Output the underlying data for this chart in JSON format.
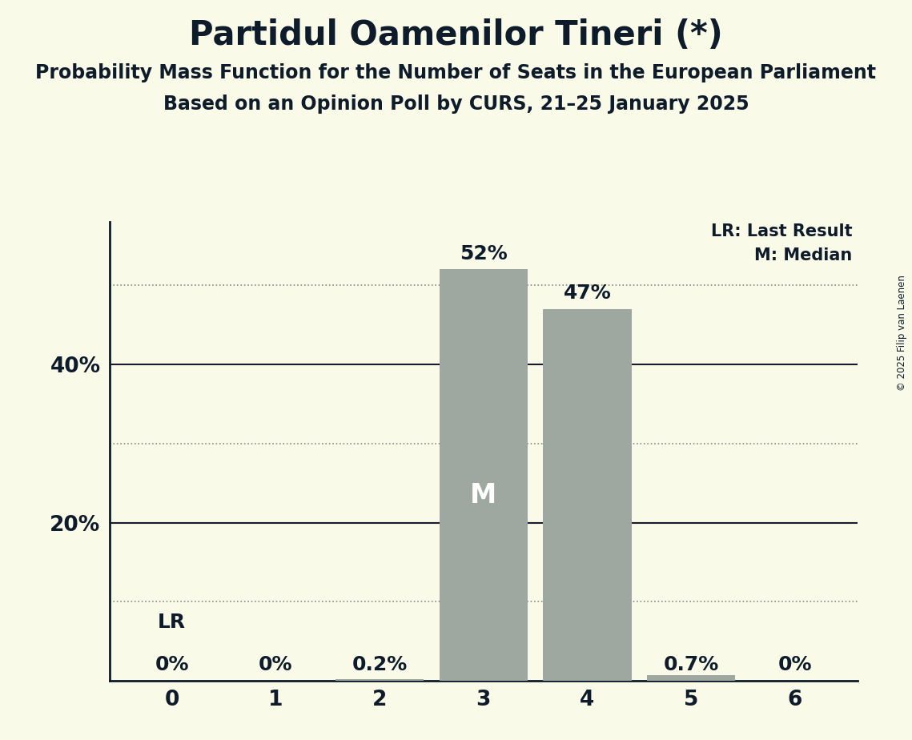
{
  "title": "Partidul Oamenilor Tineri (*)",
  "subtitle1": "Probability Mass Function for the Number of Seats in the European Parliament",
  "subtitle2": "Based on an Opinion Poll by CURS, 21–25 January 2025",
  "copyright": "© 2025 Filip van Laenen",
  "categories": [
    0,
    1,
    2,
    3,
    4,
    5,
    6
  ],
  "values": [
    0.0,
    0.0,
    0.002,
    0.52,
    0.47,
    0.007,
    0.0
  ],
  "labels": [
    "0%",
    "0%",
    "0.2%",
    "52%",
    "47%",
    "0.7%",
    "0%"
  ],
  "bar_color": "#9ea8a0",
  "median_bar": 3,
  "lr_bar": 0,
  "background_color": "#fafae8",
  "text_color": "#0d1b2a",
  "grid_solid_color": "#1a1a2e",
  "grid_dot_color": "#888888",
  "solid_gridlines": [
    0.2,
    0.4
  ],
  "dotted_gridlines": [
    0.1,
    0.3,
    0.5
  ],
  "yticks": [
    0.2,
    0.4
  ],
  "ytick_labels": [
    "20%",
    "40%"
  ],
  "ylim": [
    0,
    0.58
  ],
  "title_fontsize": 30,
  "subtitle_fontsize": 17,
  "label_fontsize": 18,
  "tick_fontsize": 19,
  "legend_fontsize": 15,
  "median_label": "M",
  "lr_label": "LR"
}
